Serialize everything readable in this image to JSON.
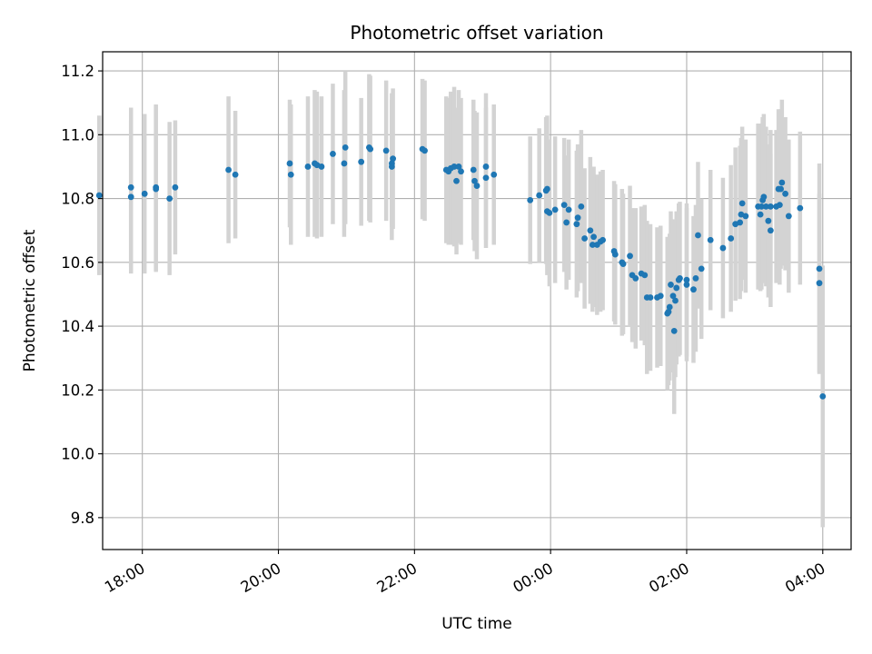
{
  "chart_data": {
    "type": "scatter",
    "title": "Photometric offset variation",
    "xlabel": "UTC time",
    "ylabel": "Photometric offset",
    "x_axis": "time",
    "x_start": "17:25",
    "x_end": "04:25",
    "ylim": [
      9.7,
      11.26
    ],
    "yticks": [
      9.8,
      10.0,
      10.2,
      10.4,
      10.6,
      10.8,
      11.0,
      11.2
    ],
    "xticks": [
      "18:00",
      "20:00",
      "22:00",
      "00:00",
      "02:00",
      "04:00"
    ],
    "grid": true,
    "legend": "none",
    "marker_color": "#1f77b4",
    "errorbar_color": "#d3d3d3",
    "series": [
      {
        "points": [
          [
            "17:22",
            10.81,
            0.25
          ],
          [
            "17:50",
            10.835,
            0.25
          ],
          [
            "17:50",
            10.805,
            0.24
          ],
          [
            "18:02",
            10.815,
            0.25
          ],
          [
            "18:12",
            10.835,
            0.26
          ],
          [
            "18:12",
            10.83,
            0.26
          ],
          [
            "18:24",
            10.8,
            0.24
          ],
          [
            "18:29",
            10.835,
            0.21
          ],
          [
            "19:16",
            10.89,
            0.23
          ],
          [
            "19:22",
            10.875,
            0.2
          ],
          [
            "20:10",
            10.91,
            0.2
          ],
          [
            "20:11",
            10.875,
            0.22
          ],
          [
            "20:26",
            10.9,
            0.22
          ],
          [
            "20:32",
            10.91,
            0.23
          ],
          [
            "20:34",
            10.905,
            0.23
          ],
          [
            "20:38",
            10.9,
            0.22
          ],
          [
            "20:48",
            10.94,
            0.22
          ],
          [
            "20:58",
            10.91,
            0.23
          ],
          [
            "20:59",
            10.96,
            0.24
          ],
          [
            "21:13",
            10.915,
            0.2
          ],
          [
            "21:20",
            10.96,
            0.23
          ],
          [
            "21:21",
            10.955,
            0.23
          ],
          [
            "21:35",
            10.95,
            0.22
          ],
          [
            "21:40",
            10.91,
            0.2
          ],
          [
            "21:40",
            10.9,
            0.23
          ],
          [
            "21:41",
            10.925,
            0.22
          ],
          [
            "22:07",
            10.955,
            0.22
          ],
          [
            "22:09",
            10.95,
            0.22
          ],
          [
            "22:28",
            10.89,
            0.23
          ],
          [
            "22:30",
            10.885,
            0.23
          ],
          [
            "22:32",
            10.895,
            0.24
          ],
          [
            "22:35",
            10.9,
            0.25
          ],
          [
            "22:37",
            10.855,
            0.23
          ],
          [
            "22:39",
            10.9,
            0.24
          ],
          [
            "22:41",
            10.885,
            0.23
          ],
          [
            "22:52",
            10.89,
            0.22
          ],
          [
            "22:53",
            10.855,
            0.22
          ],
          [
            "22:55",
            10.84,
            0.23
          ],
          [
            "23:03",
            10.9,
            0.23
          ],
          [
            "23:03",
            10.865,
            0.22
          ],
          [
            "23:10",
            10.875,
            0.22
          ],
          [
            "23:42",
            10.795,
            0.2
          ],
          [
            "23:50",
            10.81,
            0.21
          ],
          [
            "23:56",
            10.825,
            0.23
          ],
          [
            "23:57",
            10.83,
            0.23
          ],
          [
            "23:57",
            10.76,
            0.2
          ],
          [
            "23:59",
            10.755,
            0.23
          ],
          [
            "00:04",
            10.765,
            0.23
          ],
          [
            "00:12",
            10.78,
            0.21
          ],
          [
            "00:14",
            10.725,
            0.21
          ],
          [
            "00:16",
            10.765,
            0.22
          ],
          [
            "00:23",
            10.72,
            0.23
          ],
          [
            "00:24",
            10.74,
            0.23
          ],
          [
            "00:27",
            10.775,
            0.24
          ],
          [
            "00:30",
            10.675,
            0.22
          ],
          [
            "00:35",
            10.7,
            0.23
          ],
          [
            "00:37",
            10.655,
            0.21
          ],
          [
            "00:38",
            10.68,
            0.22
          ],
          [
            "00:41",
            10.655,
            0.22
          ],
          [
            "00:44",
            10.665,
            0.22
          ],
          [
            "00:46",
            10.67,
            0.22
          ],
          [
            "00:56",
            10.635,
            0.22
          ],
          [
            "00:57",
            10.625,
            0.22
          ],
          [
            "01:03",
            10.6,
            0.23
          ],
          [
            "01:04",
            10.595,
            0.22
          ],
          [
            "01:10",
            10.62,
            0.22
          ],
          [
            "01:12",
            10.56,
            0.21
          ],
          [
            "01:15",
            10.55,
            0.22
          ],
          [
            "01:20",
            10.565,
            0.21
          ],
          [
            "01:23",
            10.56,
            0.22
          ],
          [
            "01:25",
            10.49,
            0.24
          ],
          [
            "01:28",
            10.49,
            0.23
          ],
          [
            "01:34",
            10.49,
            0.22
          ],
          [
            "01:37",
            10.495,
            0.22
          ],
          [
            "01:43",
            10.44,
            0.24
          ],
          [
            "01:44",
            10.445,
            0.23
          ],
          [
            "01:45",
            10.46,
            0.23
          ],
          [
            "01:46",
            10.53,
            0.23
          ],
          [
            "01:48",
            10.495,
            0.24
          ],
          [
            "01:49",
            10.385,
            0.26
          ],
          [
            "01:50",
            10.48,
            0.24
          ],
          [
            "01:51",
            10.52,
            0.24
          ],
          [
            "01:53",
            10.545,
            0.24
          ],
          [
            "01:54",
            10.55,
            0.24
          ],
          [
            "02:00",
            10.545,
            0.24
          ],
          [
            "02:00",
            10.53,
            0.24
          ],
          [
            "02:06",
            10.515,
            0.23
          ],
          [
            "02:08",
            10.55,
            0.23
          ],
          [
            "02:10",
            10.685,
            0.23
          ],
          [
            "02:13",
            10.58,
            0.22
          ],
          [
            "02:21",
            10.67,
            0.22
          ],
          [
            "02:32",
            10.645,
            0.22
          ],
          [
            "02:39",
            10.675,
            0.23
          ],
          [
            "02:43",
            10.72,
            0.24
          ],
          [
            "02:47",
            10.725,
            0.24
          ],
          [
            "02:48",
            10.75,
            0.24
          ],
          [
            "02:49",
            10.785,
            0.24
          ],
          [
            "02:52",
            10.745,
            0.24
          ],
          [
            "03:03",
            10.775,
            0.26
          ],
          [
            "03:05",
            10.75,
            0.24
          ],
          [
            "03:06",
            10.775,
            0.26
          ],
          [
            "03:07",
            10.795,
            0.26
          ],
          [
            "03:08",
            10.805,
            0.26
          ],
          [
            "03:10",
            10.775,
            0.25
          ],
          [
            "03:12",
            10.73,
            0.24
          ],
          [
            "03:14",
            10.7,
            0.24
          ],
          [
            "03:14",
            10.775,
            0.24
          ],
          [
            "03:19",
            10.775,
            0.24
          ],
          [
            "03:21",
            10.83,
            0.25
          ],
          [
            "03:22",
            10.78,
            0.25
          ],
          [
            "03:23",
            10.83,
            0.25
          ],
          [
            "03:24",
            10.85,
            0.26
          ],
          [
            "03:27",
            10.815,
            0.24
          ],
          [
            "03:30",
            10.745,
            0.24
          ],
          [
            "03:40",
            10.77,
            0.24
          ],
          [
            "03:57",
            10.58,
            0.33
          ],
          [
            "03:57",
            10.535,
            0.28
          ],
          [
            "04:00",
            10.18,
            0.41
          ]
        ]
      }
    ]
  }
}
